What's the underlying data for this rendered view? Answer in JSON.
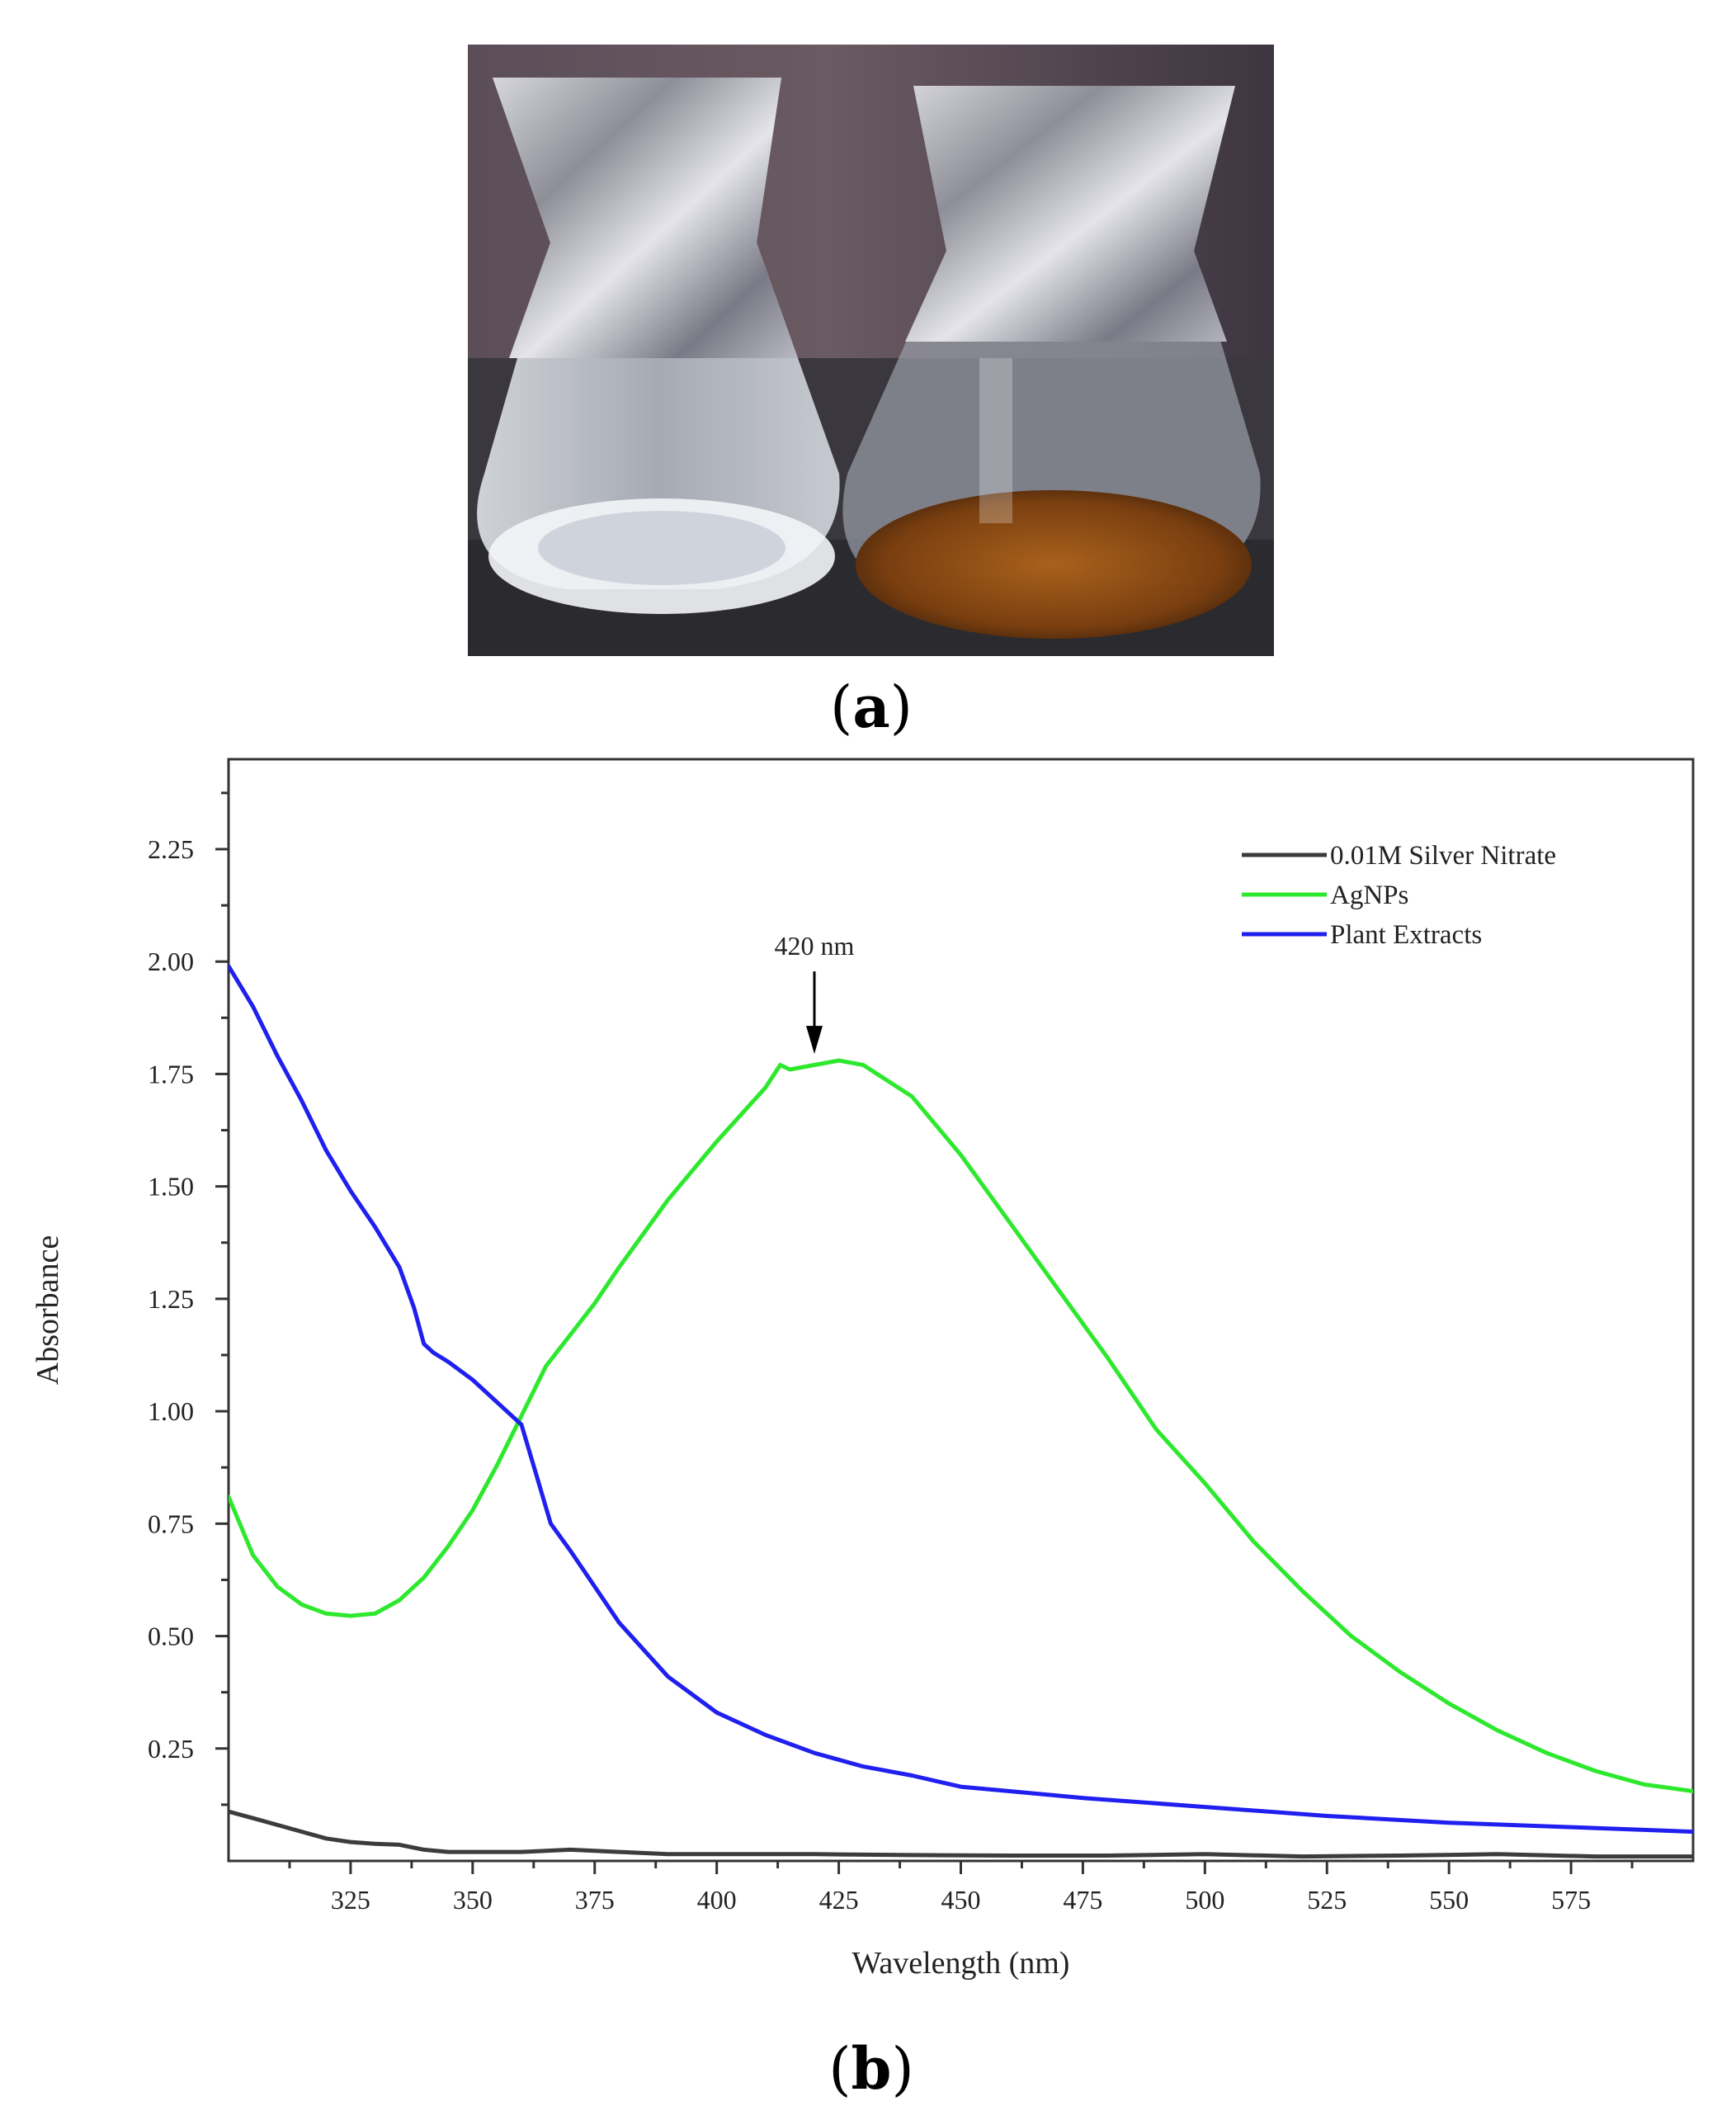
{
  "figure": {
    "panel_a_label": "a",
    "panel_b_label": "b"
  },
  "photo": {
    "description_icon": "two-erlenmeyer-flasks-photo",
    "colors": {
      "background_top": "#4a4050",
      "table": "#2c2b30",
      "left_liquid": "#d8dde4",
      "right_liquid": "#8a4a14",
      "foil": "#a8a8b0"
    }
  },
  "chart_data": {
    "type": "line",
    "xlabel": "Wavelength (nm)",
    "ylabel": "Absorbance",
    "xlim": [
      300,
      600
    ],
    "ylim": [
      0,
      2.45
    ],
    "x_ticks": [
      325,
      350,
      375,
      400,
      425,
      450,
      475,
      500,
      525,
      550,
      575
    ],
    "y_ticks": [
      0.25,
      0.5,
      0.75,
      1.0,
      1.25,
      1.5,
      1.75,
      2.0,
      2.25
    ],
    "x_tick_labels": [
      "325",
      "350",
      "375",
      "400",
      "425",
      "450",
      "475",
      "500",
      "525",
      "550",
      "575"
    ],
    "y_tick_labels": [
      "0.25",
      "0.50",
      "0.75",
      "1.00",
      "1.25",
      "1.50",
      "1.75",
      "2.00",
      "2.25"
    ],
    "legend_position": "top-right",
    "annotation": {
      "text": "420 nm",
      "x": 420,
      "y": 1.78
    },
    "series": [
      {
        "name": "0.01M Silver Nitrate",
        "color": "#3c3c3c",
        "x": [
          300,
          305,
          310,
          315,
          320,
          325,
          330,
          335,
          340,
          345,
          350,
          360,
          370,
          380,
          390,
          400,
          420,
          440,
          460,
          480,
          500,
          520,
          540,
          560,
          580,
          600
        ],
        "y": [
          0.11,
          0.095,
          0.08,
          0.065,
          0.05,
          0.042,
          0.038,
          0.036,
          0.025,
          0.02,
          0.02,
          0.02,
          0.025,
          0.02,
          0.015,
          0.015,
          0.015,
          0.013,
          0.012,
          0.012,
          0.015,
          0.01,
          0.012,
          0.015,
          0.01,
          0.01
        ]
      },
      {
        "name": "AgNPs",
        "color": "#2ee82e",
        "x": [
          300,
          305,
          310,
          315,
          320,
          325,
          330,
          335,
          340,
          345,
          350,
          355,
          360,
          365,
          370,
          375,
          380,
          390,
          400,
          410,
          413,
          415,
          420,
          425,
          430,
          440,
          450,
          460,
          470,
          480,
          490,
          500,
          510,
          520,
          530,
          540,
          550,
          560,
          570,
          580,
          590,
          600
        ],
        "y": [
          0.81,
          0.68,
          0.61,
          0.57,
          0.55,
          0.545,
          0.55,
          0.58,
          0.63,
          0.7,
          0.78,
          0.88,
          0.99,
          1.1,
          1.17,
          1.24,
          1.32,
          1.47,
          1.6,
          1.72,
          1.77,
          1.76,
          1.77,
          1.78,
          1.77,
          1.7,
          1.57,
          1.42,
          1.27,
          1.12,
          0.96,
          0.84,
          0.71,
          0.6,
          0.5,
          0.42,
          0.35,
          0.29,
          0.24,
          0.2,
          0.17,
          0.155
        ]
      },
      {
        "name": "Plant Extracts",
        "color": "#1f1ff0",
        "x": [
          300,
          305,
          310,
          315,
          320,
          325,
          330,
          335,
          338,
          340,
          342,
          345,
          350,
          355,
          360,
          363,
          366,
          370,
          375,
          380,
          390,
          400,
          410,
          420,
          430,
          440,
          450,
          460,
          475,
          500,
          525,
          550,
          575,
          600
        ],
        "y": [
          1.99,
          1.9,
          1.79,
          1.69,
          1.58,
          1.49,
          1.41,
          1.32,
          1.23,
          1.15,
          1.13,
          1.11,
          1.07,
          1.02,
          0.97,
          0.86,
          0.75,
          0.69,
          0.61,
          0.53,
          0.41,
          0.33,
          0.28,
          0.24,
          0.21,
          0.19,
          0.165,
          0.155,
          0.14,
          0.12,
          0.1,
          0.085,
          0.075,
          0.065
        ]
      }
    ]
  }
}
